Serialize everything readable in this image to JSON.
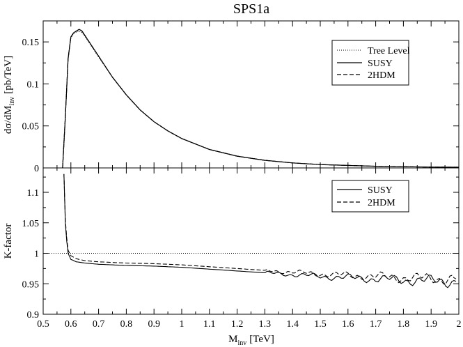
{
  "chart_data": [
    {
      "type": "line",
      "title": "SPS1a",
      "ylabel": "dσ/dM",
      "ylabel_sub": "inv",
      "ylabel_unit": "[pb/TeV]",
      "xlim": [
        0.5,
        2.0
      ],
      "ylim": [
        0,
        0.175
      ],
      "yticks": [
        0,
        0.05,
        0.1,
        0.15
      ],
      "ytick_labels": [
        "0",
        "0.05",
        "0.1",
        "0.15"
      ],
      "legend": [
        "Tree Level",
        "SUSY",
        "2HDM"
      ],
      "legend_position": "top-right",
      "x": [
        0.57,
        0.58,
        0.59,
        0.6,
        0.61,
        0.62,
        0.63,
        0.64,
        0.65,
        0.67,
        0.7,
        0.75,
        0.8,
        0.85,
        0.9,
        0.95,
        1.0,
        1.1,
        1.2,
        1.3,
        1.4,
        1.5,
        1.6,
        1.7,
        1.8,
        1.9,
        2.0
      ],
      "series": [
        {
          "name": "Tree Level",
          "style": "dotted",
          "values": [
            0.0,
            0.06,
            0.13,
            0.155,
            0.16,
            0.162,
            0.163,
            0.161,
            0.157,
            0.147,
            0.132,
            0.108,
            0.087,
            0.069,
            0.055,
            0.044,
            0.035,
            0.022,
            0.014,
            0.009,
            0.006,
            0.004,
            0.003,
            0.002,
            0.0015,
            0.001,
            0.0008
          ]
        },
        {
          "name": "SUSY",
          "style": "solid",
          "values": [
            0.0,
            0.06,
            0.13,
            0.156,
            0.161,
            0.163,
            0.165,
            0.163,
            0.158,
            0.148,
            0.133,
            0.108,
            0.087,
            0.069,
            0.055,
            0.044,
            0.035,
            0.022,
            0.014,
            0.009,
            0.006,
            0.004,
            0.003,
            0.002,
            0.0015,
            0.001,
            0.0008
          ]
        },
        {
          "name": "2HDM",
          "style": "dashed",
          "values": [
            0.0,
            0.06,
            0.13,
            0.156,
            0.161,
            0.163,
            0.165,
            0.163,
            0.158,
            0.148,
            0.133,
            0.108,
            0.087,
            0.069,
            0.055,
            0.044,
            0.035,
            0.022,
            0.014,
            0.009,
            0.006,
            0.004,
            0.003,
            0.002,
            0.0015,
            0.001,
            0.0008
          ]
        }
      ]
    },
    {
      "type": "line",
      "title": "",
      "xlabel": "M",
      "xlabel_sub": "inv",
      "xlabel_unit": "[TeV]",
      "ylabel": "K-factor",
      "xlim": [
        0.5,
        2.0
      ],
      "ylim": [
        0.9,
        1.14
      ],
      "xticks": [
        0.5,
        0.6,
        0.7,
        0.8,
        0.9,
        1.0,
        1.1,
        1.2,
        1.3,
        1.4,
        1.5,
        1.6,
        1.7,
        1.8,
        1.9,
        2.0
      ],
      "xtick_labels": [
        "0.5",
        "0.6",
        "0.7",
        "0.8",
        "0.9",
        "1",
        "1.1",
        "1.2",
        "1.3",
        "1.4",
        "1.5",
        "1.6",
        "1.7",
        "1.8",
        "1.9",
        "2"
      ],
      "yticks": [
        0.9,
        0.95,
        1.0,
        1.05,
        1.1
      ],
      "ytick_labels": [
        "0.9",
        "0.95",
        "1",
        "1.05",
        "1.1"
      ],
      "legend": [
        "SUSY",
        "2HDM"
      ],
      "legend_position": "top-right",
      "reference_line": {
        "name": "Tree Level",
        "y": 1.0,
        "style": "dotted"
      },
      "x": [
        0.575,
        0.58,
        0.585,
        0.59,
        0.6,
        0.62,
        0.65,
        0.7,
        0.8,
        0.9,
        1.0,
        1.1,
        1.2,
        1.3,
        1.4,
        1.5,
        1.6,
        1.7,
        1.8,
        1.9,
        1.99
      ],
      "series": [
        {
          "name": "SUSY",
          "style": "solid",
          "values": [
            1.13,
            1.05,
            1.02,
            1.0,
            0.99,
            0.986,
            0.984,
            0.982,
            0.98,
            0.979,
            0.977,
            0.974,
            0.971,
            0.968,
            0.965,
            0.962,
            0.96,
            0.958,
            0.956,
            0.955,
            0.954
          ]
        },
        {
          "name": "2HDM",
          "style": "dashed",
          "values": [
            1.13,
            1.055,
            1.025,
            1.005,
            0.996,
            0.991,
            0.988,
            0.986,
            0.984,
            0.983,
            0.981,
            0.978,
            0.975,
            0.972,
            0.969,
            0.966,
            0.964,
            0.962,
            0.96,
            0.959,
            0.958
          ]
        }
      ]
    }
  ]
}
